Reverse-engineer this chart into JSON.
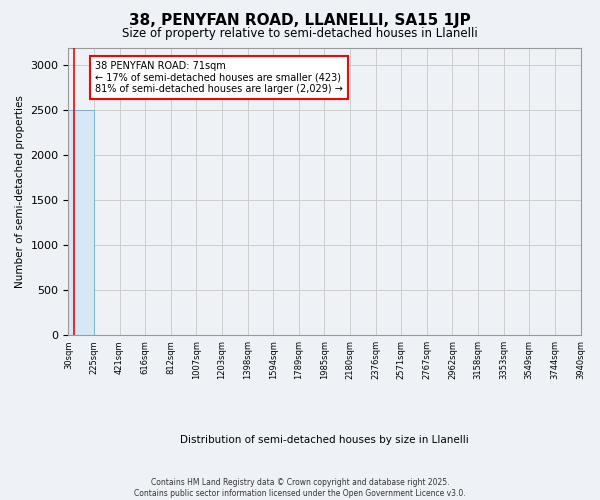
{
  "title": "38, PENYFAN ROAD, LLANELLI, SA15 1JP",
  "subtitle": "Size of property relative to semi-detached houses in Llanelli",
  "xlabel": "Distribution of semi-detached houses by size in Llanelli",
  "ylabel": "Number of semi-detached properties",
  "bin_edges": [
    30,
    225,
    421,
    616,
    812,
    1007,
    1203,
    1398,
    1594,
    1789,
    1985,
    2180,
    2376,
    2571,
    2767,
    2962,
    3158,
    3353,
    3549,
    3744,
    3940
  ],
  "bar_heights": [
    2500,
    0,
    0,
    0,
    0,
    0,
    0,
    0,
    0,
    0,
    0,
    0,
    0,
    0,
    0,
    0,
    0,
    0,
    0,
    0
  ],
  "bar_color": "#d6e8f7",
  "bar_edge_color": "#7ab0d4",
  "grid_color": "#cccccc",
  "annotation_text": "38 PENYFAN ROAD: 71sqm\n← 17% of semi-detached houses are smaller (423)\n81% of semi-detached houses are larger (2,029) →",
  "property_line_x": 71,
  "ylim": [
    0,
    3200
  ],
  "yticks": [
    0,
    500,
    1000,
    1500,
    2000,
    2500,
    3000
  ],
  "footer_line1": "Contains HM Land Registry data © Crown copyright and database right 2025.",
  "footer_line2": "Contains public sector information licensed under the Open Government Licence v3.0.",
  "bg_color": "#eef2f7",
  "plot_bg_color": "#eef2f7"
}
